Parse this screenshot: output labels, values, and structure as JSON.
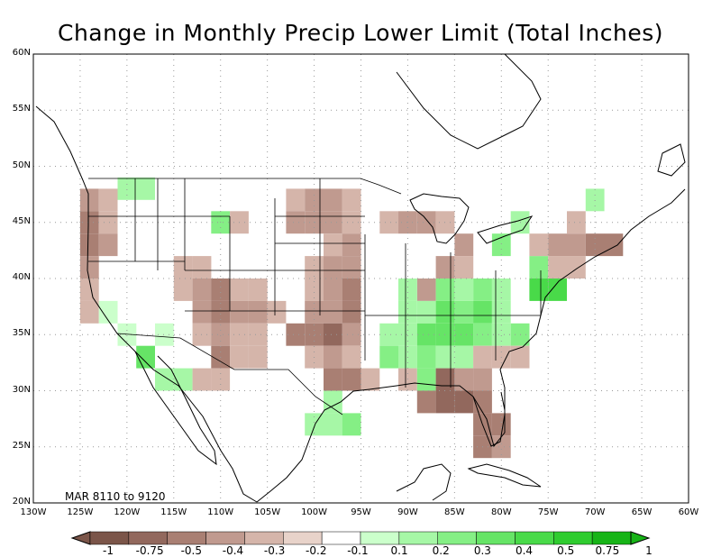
{
  "title": "Change in Monthly Precip Lower Limit (Total Inches)",
  "period_label": "MAR 8110 to 9120",
  "lat_labels": [
    "60N",
    "55N",
    "50N",
    "45N",
    "40N",
    "35N",
    "30N",
    "25N",
    "20N"
  ],
  "lon_labels": [
    "130W",
    "125W",
    "120W",
    "115W",
    "110W",
    "105W",
    "100W",
    "95W",
    "90W",
    "85W",
    "80W",
    "75W",
    "70W",
    "65W",
    "60W"
  ],
  "legend": {
    "labels": [
      "-1",
      "-0.75",
      "-0.5",
      "-0.4",
      "-0.3",
      "-0.2",
      "-0.1",
      "0.1",
      "0.2",
      "0.3",
      "0.4",
      "0.5",
      "0.75",
      "1"
    ],
    "colors": [
      "#7b5549",
      "#92685d",
      "#a97f73",
      "#c09a8f",
      "#d5b5aa",
      "#e8d3ca",
      "#ffffff",
      "#cbffcb",
      "#a6f7a6",
      "#85ef85",
      "#66e466",
      "#49da49",
      "#2fcc2f",
      "#17b417"
    ]
  },
  "cells": [
    {
      "lon": -124,
      "lat": 47,
      "v": -0.3
    },
    {
      "lon": -122,
      "lat": 47,
      "v": -0.2
    },
    {
      "lon": -120,
      "lat": 48,
      "v": 0.2
    },
    {
      "lon": -118,
      "lat": 48,
      "v": 0.2
    },
    {
      "lon": -124,
      "lat": 45,
      "v": -0.4
    },
    {
      "lon": -122,
      "lat": 45,
      "v": -0.2
    },
    {
      "lon": -124,
      "lat": 43,
      "v": -0.4
    },
    {
      "lon": -122,
      "lat": 43,
      "v": -0.3
    },
    {
      "lon": -124,
      "lat": 41,
      "v": -0.3
    },
    {
      "lon": -124,
      "lat": 39,
      "v": -0.2
    },
    {
      "lon": -124,
      "lat": 37,
      "v": -0.2
    },
    {
      "lon": -122,
      "lat": 37,
      "v": 0.1
    },
    {
      "lon": -120,
      "lat": 35,
      "v": 0.1
    },
    {
      "lon": -116,
      "lat": 35,
      "v": 0.1
    },
    {
      "lon": -118,
      "lat": 33,
      "v": 0.4
    },
    {
      "lon": -116,
      "lat": 31,
      "v": 0.2
    },
    {
      "lon": -114,
      "lat": 31,
      "v": 0.2
    },
    {
      "lon": -114,
      "lat": 41,
      "v": -0.2
    },
    {
      "lon": -112,
      "lat": 41,
      "v": -0.2
    },
    {
      "lon": -114,
      "lat": 39,
      "v": -0.2
    },
    {
      "lon": -112,
      "lat": 39,
      "v": -0.3
    },
    {
      "lon": -110,
      "lat": 39,
      "v": -0.4
    },
    {
      "lon": -108,
      "lat": 39,
      "v": -0.2
    },
    {
      "lon": -106,
      "lat": 39,
      "v": -0.2
    },
    {
      "lon": -112,
      "lat": 37,
      "v": -0.3
    },
    {
      "lon": -110,
      "lat": 37,
      "v": -0.4
    },
    {
      "lon": -108,
      "lat": 37,
      "v": -0.3
    },
    {
      "lon": -106,
      "lat": 37,
      "v": -0.3
    },
    {
      "lon": -104,
      "lat": 37,
      "v": -0.2
    },
    {
      "lon": -112,
      "lat": 35,
      "v": -0.2
    },
    {
      "lon": -110,
      "lat": 35,
      "v": -0.3
    },
    {
      "lon": -108,
      "lat": 35,
      "v": -0.2
    },
    {
      "lon": -106,
      "lat": 35,
      "v": -0.2
    },
    {
      "lon": -110,
      "lat": 33,
      "v": -0.4
    },
    {
      "lon": -108,
      "lat": 33,
      "v": -0.2
    },
    {
      "lon": -106,
      "lat": 33,
      "v": -0.2
    },
    {
      "lon": -110,
      "lat": 31,
      "v": -0.2
    },
    {
      "lon": -112,
      "lat": 31,
      "v": -0.2
    },
    {
      "lon": -110,
      "lat": 45,
      "v": 0.3
    },
    {
      "lon": -108,
      "lat": 45,
      "v": -0.2
    },
    {
      "lon": -102,
      "lat": 47,
      "v": -0.2
    },
    {
      "lon": -100,
      "lat": 47,
      "v": -0.3
    },
    {
      "lon": -98,
      "lat": 47,
      "v": -0.3
    },
    {
      "lon": -102,
      "lat": 45,
      "v": -0.3
    },
    {
      "lon": -100,
      "lat": 45,
      "v": -0.3
    },
    {
      "lon": -98,
      "lat": 45,
      "v": -0.3
    },
    {
      "lon": -96,
      "lat": 45,
      "v": -0.2
    },
    {
      "lon": -98,
      "lat": 43,
      "v": -0.2
    },
    {
      "lon": -96,
      "lat": 43,
      "v": -0.3
    },
    {
      "lon": -100,
      "lat": 41,
      "v": -0.2
    },
    {
      "lon": -98,
      "lat": 41,
      "v": -0.3
    },
    {
      "lon": -96,
      "lat": 41,
      "v": -0.3
    },
    {
      "lon": -100,
      "lat": 39,
      "v": -0.2
    },
    {
      "lon": -98,
      "lat": 39,
      "v": -0.3
    },
    {
      "lon": -96,
      "lat": 39,
      "v": -0.4
    },
    {
      "lon": -100,
      "lat": 37,
      "v": -0.3
    },
    {
      "lon": -98,
      "lat": 37,
      "v": -0.3
    },
    {
      "lon": -96,
      "lat": 37,
      "v": -0.4
    },
    {
      "lon": -102,
      "lat": 35,
      "v": -0.4
    },
    {
      "lon": -100,
      "lat": 35,
      "v": -0.4
    },
    {
      "lon": -98,
      "lat": 35,
      "v": -0.5
    },
    {
      "lon": -96,
      "lat": 35,
      "v": -0.3
    },
    {
      "lon": -100,
      "lat": 33,
      "v": -0.2
    },
    {
      "lon": -98,
      "lat": 33,
      "v": -0.3
    },
    {
      "lon": -96,
      "lat": 33,
      "v": -0.2
    },
    {
      "lon": -98,
      "lat": 31,
      "v": -0.4
    },
    {
      "lon": -96,
      "lat": 31,
      "v": -0.4
    },
    {
      "lon": -94,
      "lat": 31,
      "v": -0.2
    },
    {
      "lon": -98,
      "lat": 29,
      "v": 0.2
    },
    {
      "lon": -100,
      "lat": 27,
      "v": 0.2
    },
    {
      "lon": -98,
      "lat": 27,
      "v": 0.2
    },
    {
      "lon": -96,
      "lat": 27,
      "v": 0.3
    },
    {
      "lon": -96,
      "lat": 47,
      "v": -0.2
    },
    {
      "lon": -90,
      "lat": 45,
      "v": -0.3
    },
    {
      "lon": -88,
      "lat": 45,
      "v": -0.3
    },
    {
      "lon": -86,
      "lat": 45,
      "v": -0.2
    },
    {
      "lon": -92,
      "lat": 45,
      "v": -0.2
    },
    {
      "lon": -84,
      "lat": 43,
      "v": -0.3
    },
    {
      "lon": -86,
      "lat": 41,
      "v": -0.3
    },
    {
      "lon": -84,
      "lat": 41,
      "v": -0.2
    },
    {
      "lon": -88,
      "lat": 39,
      "v": -0.3
    },
    {
      "lon": -90,
      "lat": 37,
      "v": 0.2
    },
    {
      "lon": -88,
      "lat": 37,
      "v": 0.2
    },
    {
      "lon": -86,
      "lat": 37,
      "v": 0.4
    },
    {
      "lon": -84,
      "lat": 37,
      "v": 0.3
    },
    {
      "lon": -82,
      "lat": 37,
      "v": 0.4
    },
    {
      "lon": -80,
      "lat": 37,
      "v": 0.2
    },
    {
      "lon": -92,
      "lat": 35,
      "v": 0.2
    },
    {
      "lon": -90,
      "lat": 35,
      "v": 0.2
    },
    {
      "lon": -88,
      "lat": 35,
      "v": 0.4
    },
    {
      "lon": -86,
      "lat": 35,
      "v": 0.4
    },
    {
      "lon": -84,
      "lat": 35,
      "v": 0.4
    },
    {
      "lon": -82,
      "lat": 35,
      "v": 0.3
    },
    {
      "lon": -80,
      "lat": 35,
      "v": 0.2
    },
    {
      "lon": -78,
      "lat": 35,
      "v": 0.3
    },
    {
      "lon": -92,
      "lat": 33,
      "v": 0.3
    },
    {
      "lon": -90,
      "lat": 33,
      "v": 0.2
    },
    {
      "lon": -88,
      "lat": 33,
      "v": 0.3
    },
    {
      "lon": -86,
      "lat": 33,
      "v": 0.2
    },
    {
      "lon": -84,
      "lat": 33,
      "v": 0.2
    },
    {
      "lon": -82,
      "lat": 33,
      "v": -0.2
    },
    {
      "lon": -80,
      "lat": 33,
      "v": -0.2
    },
    {
      "lon": -78,
      "lat": 33,
      "v": -0.2
    },
    {
      "lon": -90,
      "lat": 31,
      "v": -0.2
    },
    {
      "lon": -88,
      "lat": 31,
      "v": 0.3
    },
    {
      "lon": -86,
      "lat": 31,
      "v": -0.5
    },
    {
      "lon": -84,
      "lat": 31,
      "v": -0.3
    },
    {
      "lon": -82,
      "lat": 31,
      "v": -0.3
    },
    {
      "lon": -88,
      "lat": 29,
      "v": -0.4
    },
    {
      "lon": -86,
      "lat": 29,
      "v": -0.5
    },
    {
      "lon": -84,
      "lat": 29,
      "v": -0.5
    },
    {
      "lon": -82,
      "lat": 29,
      "v": -0.4
    },
    {
      "lon": -82,
      "lat": 27,
      "v": -0.4
    },
    {
      "lon": -80,
      "lat": 27,
      "v": -0.4
    },
    {
      "lon": -82,
      "lat": 25,
      "v": -0.4
    },
    {
      "lon": -80,
      "lat": 25,
      "v": -0.3
    },
    {
      "lon": -76,
      "lat": 39,
      "v": 0.5
    },
    {
      "lon": -74,
      "lat": 39,
      "v": 0.5
    },
    {
      "lon": -76,
      "lat": 41,
      "v": 0.3
    },
    {
      "lon": -74,
      "lat": 41,
      "v": -0.2
    },
    {
      "lon": -72,
      "lat": 41,
      "v": -0.2
    },
    {
      "lon": -76,
      "lat": 43,
      "v": -0.2
    },
    {
      "lon": -74,
      "lat": 43,
      "v": -0.3
    },
    {
      "lon": -72,
      "lat": 43,
      "v": -0.3
    },
    {
      "lon": -70,
      "lat": 43,
      "v": -0.4
    },
    {
      "lon": -68,
      "lat": 43,
      "v": -0.4
    },
    {
      "lon": -72,
      "lat": 45,
      "v": -0.2
    },
    {
      "lon": -78,
      "lat": 45,
      "v": 0.2
    },
    {
      "lon": -70,
      "lat": 47,
      "v": 0.2
    },
    {
      "lon": -80,
      "lat": 43,
      "v": 0.3
    },
    {
      "lon": -80,
      "lat": 39,
      "v": 0.2
    },
    {
      "lon": -82,
      "lat": 39,
      "v": 0.3
    },
    {
      "lon": -84,
      "lat": 39,
      "v": 0.2
    },
    {
      "lon": -86,
      "lat": 39,
      "v": 0.3
    },
    {
      "lon": -90,
      "lat": 39,
      "v": 0.2
    }
  ]
}
